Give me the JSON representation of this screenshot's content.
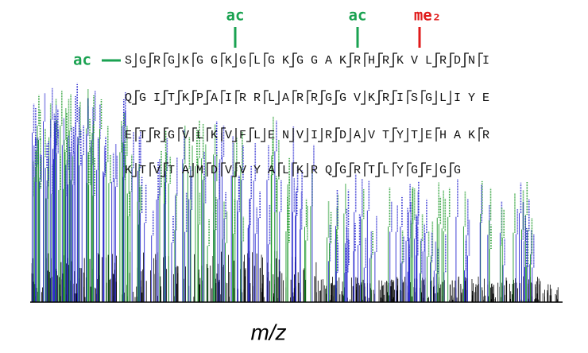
{
  "modifications": [
    "ac",
    "ac",
    "ac",
    "me₂"
  ],
  "sequence": {
    "rows": [
      "SGRGKGGKGLGKGGAKRHRKVLRDNI",
      "QGITKPAIRRLARRGGVKRISGLIYE",
      "ETRGVLKVFLENVIRDAVTYTEHAKR",
      "KTVTAMDVVYALKRQGRTLYGFGG"
    ]
  },
  "x_label": "m/z"
}
